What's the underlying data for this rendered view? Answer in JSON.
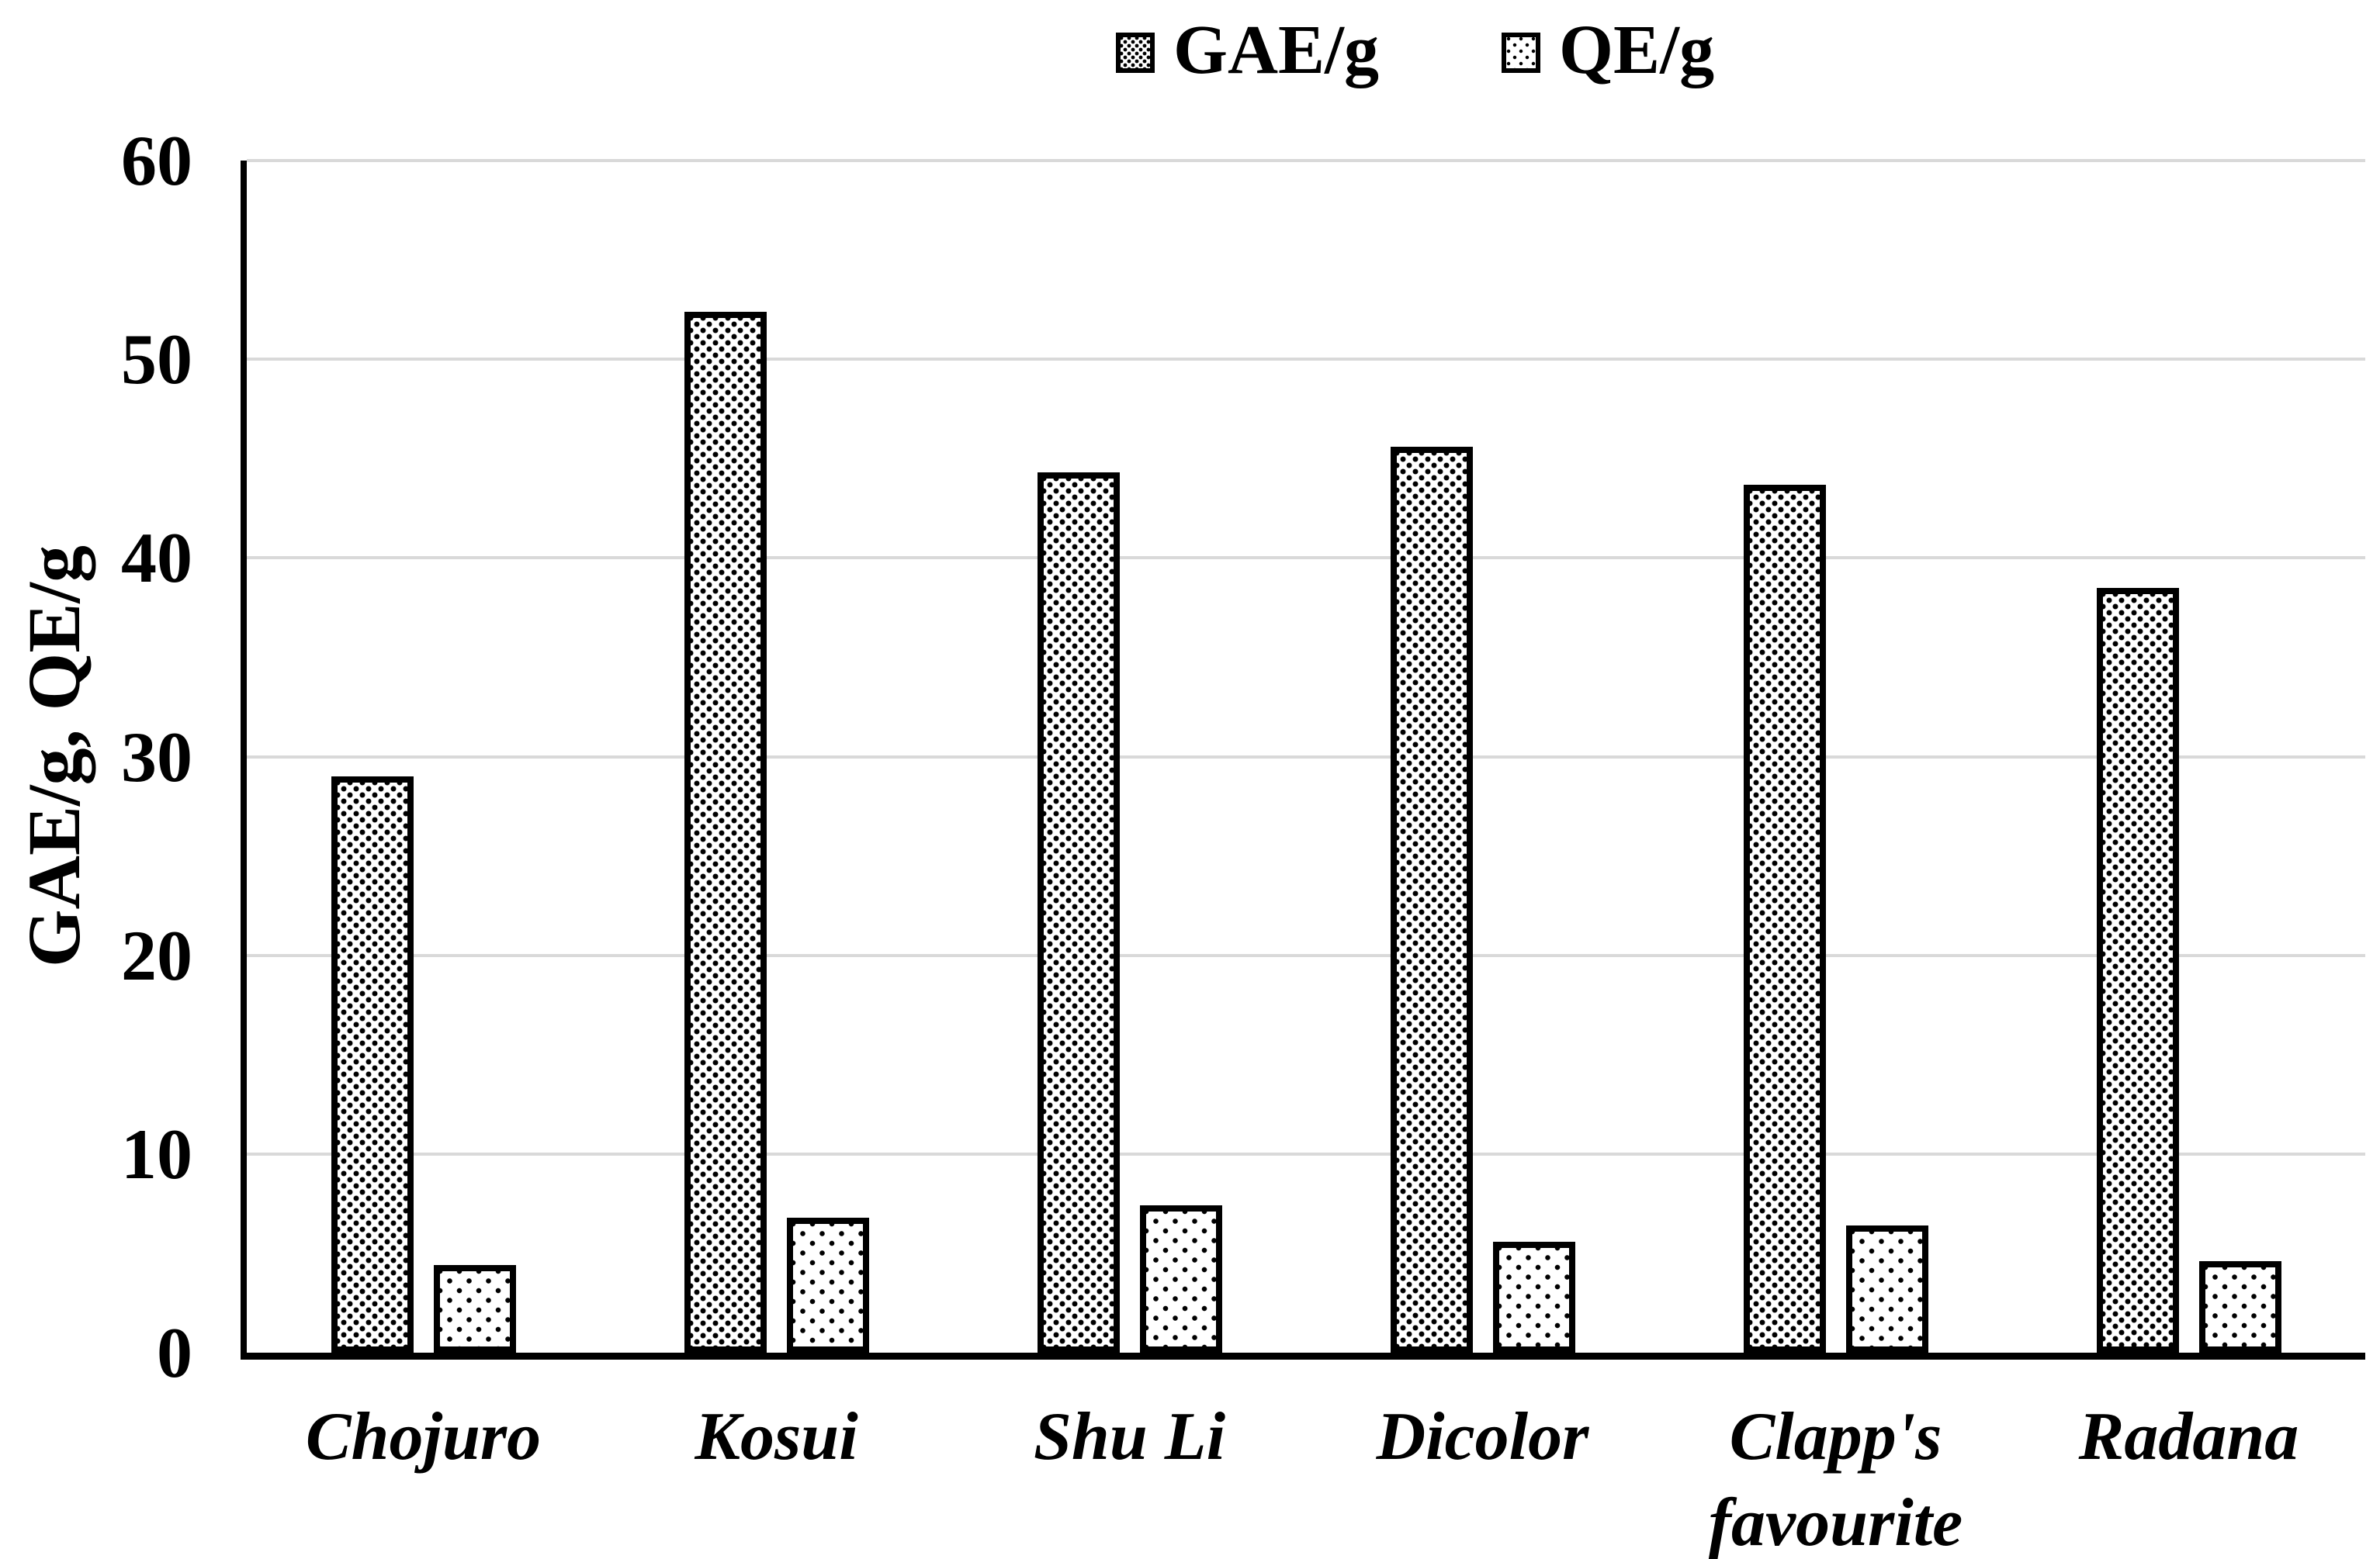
{
  "legend": {
    "items": [
      {
        "label": "GAE/g",
        "pattern": "dense"
      },
      {
        "label": "QE/g",
        "pattern": "sparse"
      }
    ]
  },
  "chart_data": {
    "type": "bar",
    "categories": [
      "Chojuro",
      "Kosui",
      "Shu Li",
      "Dicolor",
      "Clapp's favourite",
      "Radana"
    ],
    "series": [
      {
        "name": "GAE/g",
        "pattern": "dense",
        "values": [
          29.0,
          52.4,
          44.3,
          45.6,
          43.7,
          38.5
        ]
      },
      {
        "name": "QE/g",
        "pattern": "sparse",
        "values": [
          4.4,
          6.8,
          7.4,
          5.6,
          6.4,
          4.6
        ]
      }
    ],
    "title": "",
    "xlabel": "",
    "ylabel": "GAE/g, QE/g",
    "ylim": [
      0,
      60
    ],
    "yticks": [
      0,
      10,
      20,
      30,
      40,
      50,
      60
    ],
    "grid": true,
    "legend_position": "top-center",
    "colors": {
      "bar_fill": "#ffffff",
      "bar_border": "#000000",
      "dots": "#000000",
      "gridline": "#d9d9d9",
      "axis": "#000000",
      "text": "#000000",
      "background": "#ffffff"
    }
  }
}
